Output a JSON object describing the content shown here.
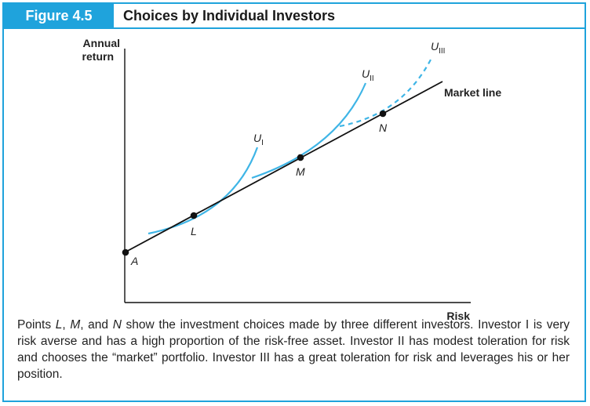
{
  "figure": {
    "number": "Figure 4.5",
    "title": "Choices by Individual Investors"
  },
  "chart_data": {
    "type": "line",
    "xlabel": "Risk",
    "ylabel": [
      "Annual",
      "return"
    ],
    "series": [
      {
        "name": "Market line",
        "label": "Market line"
      }
    ],
    "curve_labels": [
      {
        "id": "u1",
        "base": "U",
        "sub": "I"
      },
      {
        "id": "u2",
        "base": "U",
        "sub": "II"
      },
      {
        "id": "u3",
        "base": "U",
        "sub": "III"
      }
    ],
    "points": [
      {
        "id": "A",
        "label": "A"
      },
      {
        "id": "L",
        "label": "L"
      },
      {
        "id": "M",
        "label": "M"
      },
      {
        "id": "N",
        "label": "N"
      }
    ],
    "colors": {
      "curves": "#3fb5e6",
      "line": "#111111",
      "accent": "#1fa3dc"
    }
  },
  "caption": {
    "p1": "Points ",
    "L": "L",
    "c1": ", ",
    "M": "M",
    "c2": ", and ",
    "N": "N",
    "p2": " show the investment choices made by three different investors. Investor I is very risk averse and has a high proportion of the risk-free asset. Investor II has modest toleration for risk and chooses the “market” portfolio. Investor III has a great toleration for risk and leverages his or her position."
  }
}
